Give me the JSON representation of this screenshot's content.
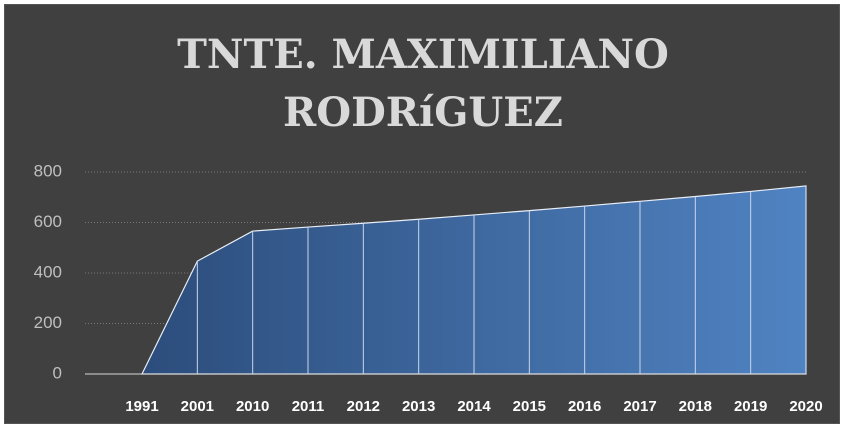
{
  "chart_data": {
    "type": "area",
    "title": "TNTE. MAXIMILIANO RODRíGUEZ",
    "categories": [
      "1991",
      "2001",
      "2010",
      "2011",
      "2012",
      "2013",
      "2014",
      "2015",
      "2016",
      "2017",
      "2018",
      "2019",
      "2020"
    ],
    "values": [
      0,
      447,
      566,
      582,
      597,
      613,
      630,
      647,
      665,
      684,
      703,
      723,
      745
    ],
    "color": "#4f81bd",
    "ylim": [
      0,
      800
    ],
    "yticks": [
      0,
      200,
      400,
      600,
      800
    ],
    "grid": true
  }
}
